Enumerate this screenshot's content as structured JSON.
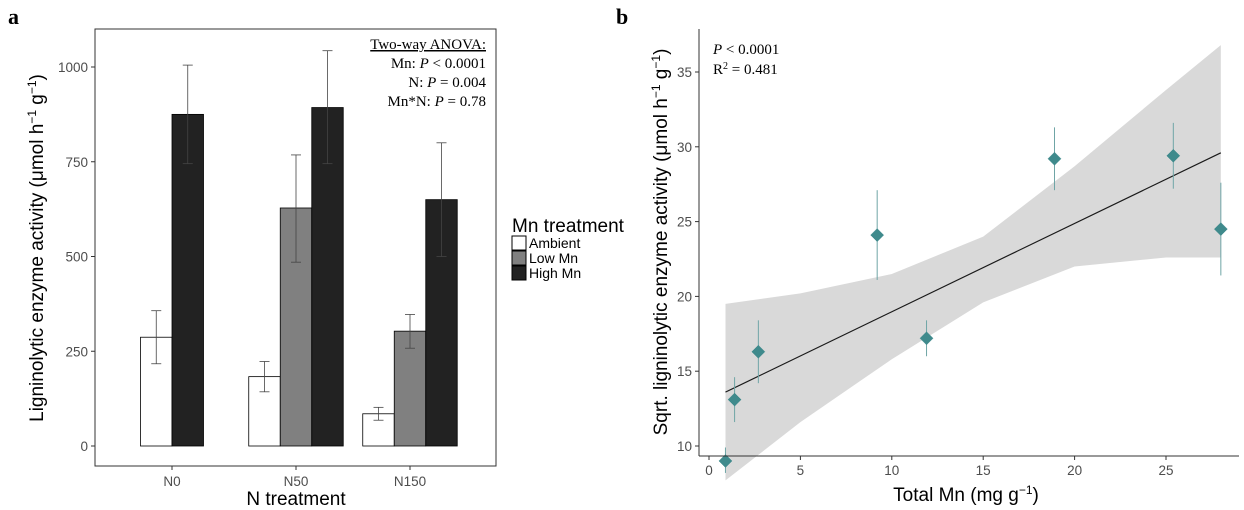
{
  "panel_a": {
    "label": "a",
    "anova": {
      "title": "Two-way ANOVA:",
      "lines": [
        {
          "pre": "Mn: ",
          "p": "P",
          "rest": " < 0.0001"
        },
        {
          "pre": "N: ",
          "p": "P",
          "rest": " = 0.004"
        },
        {
          "pre": "Mn*N: ",
          "p": "P",
          "rest": " = 0.78"
        }
      ]
    },
    "ylabel": {
      "pre": "Ligninolytic enzyme activity (",
      "mu": "μ",
      "unit": "mol h",
      "sup1": "−1",
      "g": " g",
      "sup2": "−1",
      "close": ")"
    },
    "xlabel": "N treatment",
    "legend": {
      "title": "Mn treatment",
      "items": [
        {
          "label": "Ambient",
          "color": "#ffffff"
        },
        {
          "label": "Low Mn",
          "color": "#808080"
        },
        {
          "label": "High Mn",
          "color": "#222222"
        }
      ]
    }
  },
  "panel_b": {
    "label": "b",
    "stat": {
      "p": "P",
      "p_rest": " < 0.0001",
      "r": "R",
      "r_sup": "2",
      "r_rest": " = 0.481"
    },
    "ylabel": {
      "pre": "Sqrt. ligninolytic enzyme activity (",
      "mu": "μ",
      "unit": "mol h",
      "sup1": "−1",
      "g": " g",
      "sup2": "−1",
      "close": ")"
    },
    "xlabel": {
      "pre": "Total Mn (mg g",
      "sup": "−1",
      "close": ")"
    },
    "point_color": "#3f8a8c",
    "band_color": "#d9d9d9"
  },
  "chart_data": [
    {
      "type": "bar",
      "title": "",
      "xlabel": "N treatment",
      "ylabel": "Ligninolytic enzyme activity (μmol h−1 g−1)",
      "categories": [
        "N0",
        "N50",
        "N150"
      ],
      "ylim": [
        0,
        1080
      ],
      "yticks": [
        0,
        250,
        500,
        750,
        1000
      ],
      "grid": false,
      "legend_position": "right",
      "series": [
        {
          "name": "Ambient",
          "color": "#ffffff",
          "values": [
            287,
            183,
            85
          ],
          "err_low": [
            217,
            143,
            68
          ],
          "err_high": [
            357,
            223,
            102
          ]
        },
        {
          "name": "Low Mn",
          "color": "#808080",
          "values": [
            null,
            628,
            303
          ],
          "err_low": [
            null,
            485,
            258
          ],
          "err_high": [
            null,
            768,
            347
          ]
        },
        {
          "name": "High Mn",
          "color": "#222222",
          "values": [
            875,
            893,
            650
          ],
          "err_low": [
            745,
            745,
            500
          ],
          "err_high": [
            1005,
            1043,
            800
          ]
        }
      ]
    },
    {
      "type": "scatter",
      "title": "",
      "xlabel": "Total Mn (mg g−1)",
      "ylabel": "Sqrt. ligninolytic enzyme activity (μmol h−1 g−1)",
      "xlim": [
        -0.5,
        29.6
      ],
      "ylim": [
        7.3,
        37.5
      ],
      "xticks": [
        0,
        5,
        10,
        15,
        20,
        25
      ],
      "yticks": [
        10,
        15,
        20,
        25,
        30,
        35
      ],
      "grid": false,
      "points": [
        {
          "x": 0.9,
          "y": 9.0,
          "err_low": 8.2,
          "err_high": 9.9
        },
        {
          "x": 1.4,
          "y": 13.1,
          "err_low": 11.6,
          "err_high": 14.6
        },
        {
          "x": 2.7,
          "y": 16.3,
          "err_low": 14.2,
          "err_high": 18.4
        },
        {
          "x": 9.2,
          "y": 24.1,
          "err_low": 21.1,
          "err_high": 27.1
        },
        {
          "x": 11.9,
          "y": 17.2,
          "err_low": 16.0,
          "err_high": 18.4
        },
        {
          "x": 18.9,
          "y": 29.2,
          "err_low": 27.1,
          "err_high": 31.3
        },
        {
          "x": 25.4,
          "y": 29.4,
          "err_low": 27.2,
          "err_high": 31.6
        },
        {
          "x": 28.0,
          "y": 24.5,
          "err_low": 21.4,
          "err_high": 27.6
        }
      ],
      "fit_line": {
        "x": [
          0.9,
          28.0
        ],
        "y": [
          13.6,
          29.6
        ]
      },
      "confidence_band": {
        "x": [
          0.9,
          5,
          10,
          15,
          20,
          25,
          28
        ],
        "lower": [
          7.7,
          11.6,
          15.8,
          19.6,
          22.0,
          22.6,
          22.6
        ],
        "upper": [
          19.5,
          20.2,
          21.5,
          24.0,
          28.7,
          33.8,
          36.8
        ]
      }
    }
  ]
}
